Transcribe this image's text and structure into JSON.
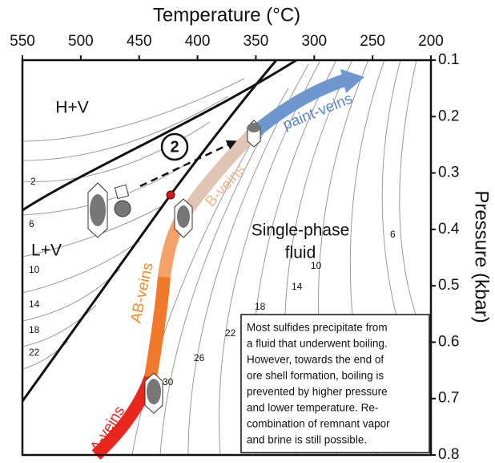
{
  "chart_data": {
    "type": "phase-diagram",
    "x_label": "Temperature (°C)",
    "y_label": "Pressure (kbar)",
    "xlim": [
      550,
      200
    ],
    "xticks": [
      550,
      500,
      450,
      400,
      350,
      300,
      250,
      200
    ],
    "ylim": [
      0.1,
      0.8
    ],
    "y_inverted": true,
    "yticks": [
      0.1,
      0.2,
      0.3,
      0.4,
      0.5,
      0.6,
      0.7,
      0.8
    ],
    "regions": [
      "H+V",
      "L+V",
      "Single-phase",
      "fluid"
    ],
    "veins": [
      "paint-veins",
      "B-veins",
      "AB-veins",
      "A-veins"
    ],
    "stage_label": "2",
    "contour_labels": [
      2,
      6,
      10,
      14,
      18,
      22,
      6,
      10,
      14,
      18,
      22,
      26,
      30
    ],
    "note": [
      "Most sulfides precipitate from",
      "a fluid that underwent boiling.",
      "However, towards the end of",
      "ore shell formation, boiling is",
      "prevented by higher pressure",
      "and lower temperature. Re-",
      "combination of remnant vapor",
      "and brine is still possible."
    ]
  }
}
